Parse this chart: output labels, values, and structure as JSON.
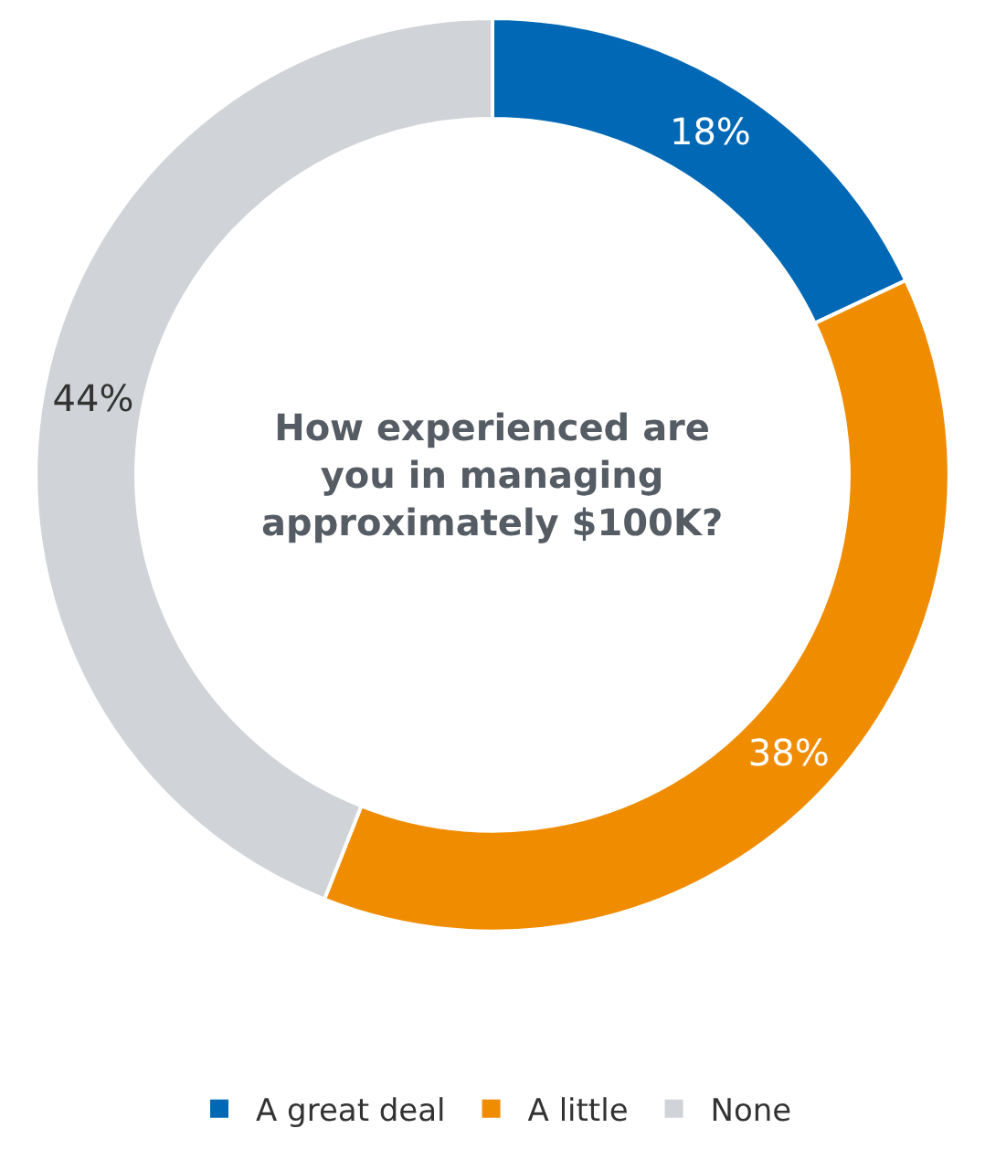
{
  "chart_data": {
    "type": "donut",
    "title": "How experienced are you in managing approximately $100K?",
    "categories": [
      "A great deal",
      "A little",
      "None"
    ],
    "values": [
      18,
      38,
      44
    ],
    "colors": [
      "#0068b4",
      "#f08c00",
      "#d0d4d8"
    ],
    "value_labels": [
      "18%",
      "38%",
      "44%"
    ],
    "legend": "bottom"
  }
}
